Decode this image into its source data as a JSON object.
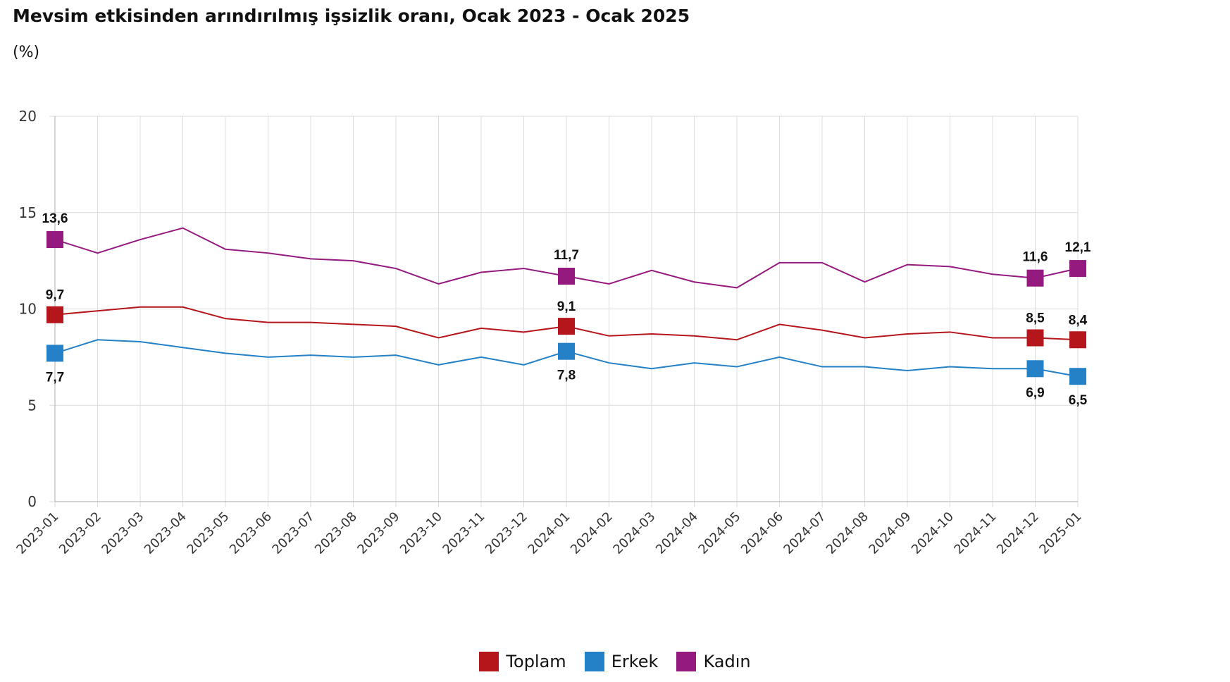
{
  "title": "Mevsim etkisinden arındırılmış işsizlik oranı, Ocak 2023 - Ocak 2025",
  "unit": "(%)",
  "colors": {
    "Toplam": "#b5161b",
    "Erkek": "#2480c7",
    "Kadın": "#951a80"
  },
  "chart_data": {
    "type": "line",
    "categories": [
      "2023-01",
      "2023-02",
      "2023-03",
      "2023-04",
      "2023-05",
      "2023-06",
      "2023-07",
      "2023-08",
      "2023-09",
      "2023-10",
      "2023-11",
      "2023-12",
      "2024-01",
      "2024-02",
      "2024-03",
      "2024-04",
      "2024-05",
      "2024-06",
      "2024-07",
      "2024-08",
      "2024-09",
      "2024-10",
      "2024-11",
      "2024-12",
      "2025-01"
    ],
    "ylim": [
      0,
      20
    ],
    "yticks": [
      0,
      5,
      10,
      15,
      20
    ],
    "grid": true,
    "legend": "bottom",
    "series": [
      {
        "name": "Toplam",
        "values": [
          9.7,
          9.9,
          10.1,
          10.1,
          9.5,
          9.3,
          9.3,
          9.2,
          9.1,
          8.5,
          9.0,
          8.8,
          9.1,
          8.6,
          8.7,
          8.6,
          8.4,
          9.2,
          8.9,
          8.5,
          8.7,
          8.8,
          8.5,
          8.5,
          8.4
        ]
      },
      {
        "name": "Erkek",
        "values": [
          7.7,
          8.4,
          8.3,
          8.0,
          7.7,
          7.5,
          7.6,
          7.5,
          7.6,
          7.1,
          7.5,
          7.1,
          7.8,
          7.2,
          6.9,
          7.2,
          7.0,
          7.5,
          7.0,
          7.0,
          6.8,
          7.0,
          6.9,
          6.9,
          6.5
        ]
      },
      {
        "name": "Kadın",
        "values": [
          13.6,
          12.9,
          13.6,
          14.2,
          13.1,
          12.9,
          12.6,
          12.5,
          12.1,
          11.3,
          11.9,
          12.1,
          11.7,
          11.3,
          12.0,
          11.4,
          11.1,
          12.4,
          12.4,
          11.4,
          12.3,
          12.2,
          11.8,
          11.6,
          12.1
        ]
      }
    ],
    "annotations": [
      {
        "series": "Toplam",
        "index": 0,
        "text": "9,7"
      },
      {
        "series": "Toplam",
        "index": 12,
        "text": "9,1"
      },
      {
        "series": "Toplam",
        "index": 23,
        "text": "8,5"
      },
      {
        "series": "Toplam",
        "index": 24,
        "text": "8,4"
      },
      {
        "series": "Erkek",
        "index": 0,
        "text": "7,7"
      },
      {
        "series": "Erkek",
        "index": 12,
        "text": "7,8"
      },
      {
        "series": "Erkek",
        "index": 23,
        "text": "6,9"
      },
      {
        "series": "Erkek",
        "index": 24,
        "text": "6,5"
      },
      {
        "series": "Kadın",
        "index": 0,
        "text": "13,6"
      },
      {
        "series": "Kadın",
        "index": 12,
        "text": "11,7"
      },
      {
        "series": "Kadın",
        "index": 23,
        "text": "11,6"
      },
      {
        "series": "Kadın",
        "index": 24,
        "text": "12,1"
      }
    ]
  }
}
